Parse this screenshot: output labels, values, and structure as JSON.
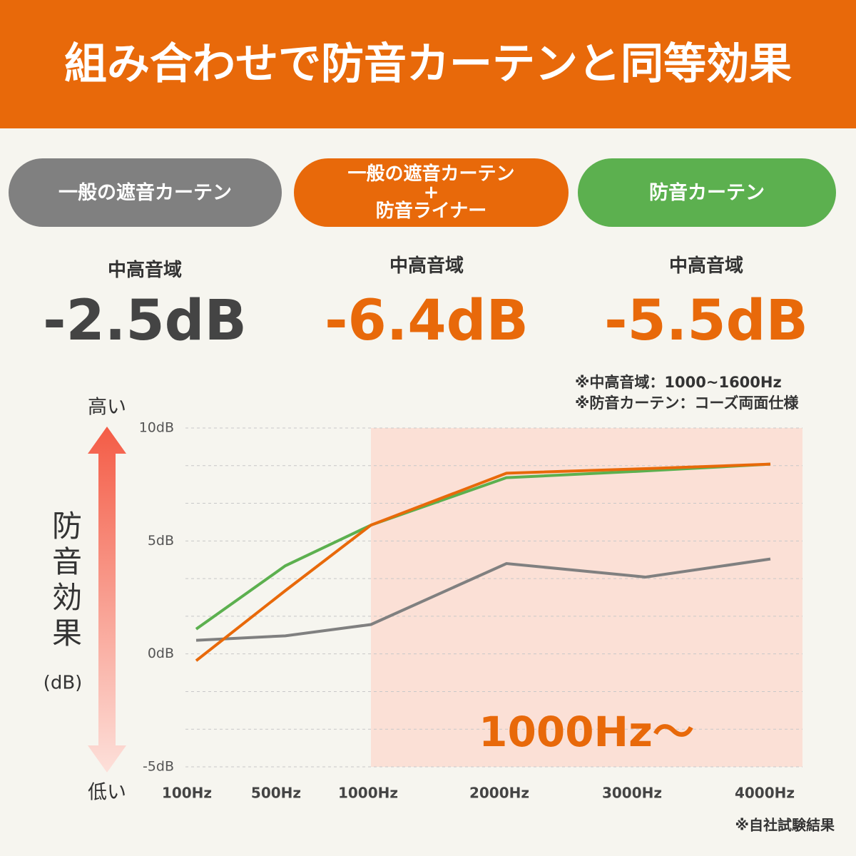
{
  "header": {
    "title": "組み合わせで防音カーテンと同等効果"
  },
  "summary": [
    {
      "region": "中高音域",
      "value": "-2.5dB"
    },
    {
      "region": "中高音域",
      "value": "-6.4dB"
    },
    {
      "region": "中高音域",
      "value": "-5.5dB"
    }
  ],
  "notes": [
    "※中高音域：1000~1600Hz",
    "※防音カーテン：コーズ両面仕様"
  ],
  "footnote": "※自社試験結果",
  "chart_data": {
    "type": "line",
    "y_label": "防音効果",
    "y_unit": "(dB)",
    "y_high": "高い",
    "y_low": "低い",
    "annotation": "1000Hz〜",
    "categories": [
      "100Hz",
      "500Hz",
      "1000Hz",
      "2000Hz",
      "3000Hz",
      "4000Hz"
    ],
    "series": [
      {
        "name": "一般の遮音カーテン",
        "color": "#808080",
        "values": [
          0.6,
          0.8,
          1.3,
          4.0,
          3.4,
          4.2
        ]
      },
      {
        "name": "一般の遮音カーテン\n+\n防音ライナー",
        "color": "#e8690a",
        "values": [
          -0.3,
          2.8,
          5.7,
          8.0,
          8.2,
          8.4
        ]
      },
      {
        "name": "防音カーテン",
        "color": "#5cb04f",
        "values": [
          1.1,
          3.9,
          5.7,
          7.8,
          8.1,
          8.4
        ]
      }
    ],
    "ylim": [
      -5,
      10
    ],
    "yticks": [
      {
        "value": 10,
        "label": "10dB"
      },
      {
        "value": 5,
        "label": "5dB"
      },
      {
        "value": 0,
        "label": "0dB"
      },
      {
        "value": -5,
        "label": "-5dB"
      }
    ],
    "grid": true
  }
}
